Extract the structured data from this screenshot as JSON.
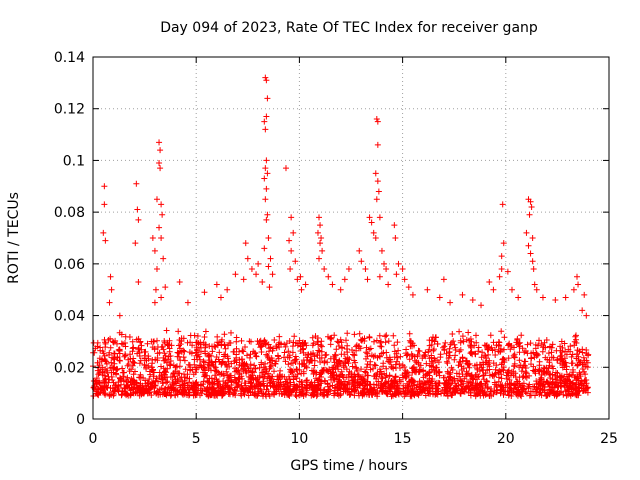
{
  "chart_data": {
    "type": "scatter",
    "title": "Day 094 of 2023, Rate Of TEC Index for receiver ganp",
    "xlabel": "GPS time / hours",
    "ylabel": "ROTI / TECUs",
    "xlim": [
      0,
      25
    ],
    "ylim": [
      0,
      0.14
    ],
    "xticks": [
      0,
      5,
      10,
      15,
      20,
      25
    ],
    "xtick_labels": [
      "0",
      "5",
      "10",
      "15",
      "20",
      "25"
    ],
    "yticks": [
      0,
      0.02,
      0.04,
      0.06,
      0.08,
      0.1,
      0.12,
      0.14
    ],
    "ytick_labels": [
      "0",
      "0.02",
      "0.04",
      "0.06",
      "0.08",
      "0.1",
      "0.12",
      "0.14"
    ],
    "grid": true,
    "marker": "+",
    "color": "#ff0000",
    "x_range_data": [
      0,
      24
    ],
    "baseline_band": [
      0.005,
      0.03
    ],
    "series": [
      {
        "name": "ROTI",
        "points": [
          [
            0.55,
            0.09
          ],
          [
            0.55,
            0.083
          ],
          [
            0.5,
            0.072
          ],
          [
            0.6,
            0.069
          ],
          [
            0.85,
            0.055
          ],
          [
            0.9,
            0.05
          ],
          [
            0.8,
            0.045
          ],
          [
            1.3,
            0.04
          ],
          [
            2.1,
            0.091
          ],
          [
            2.15,
            0.081
          ],
          [
            2.2,
            0.077
          ],
          [
            2.05,
            0.068
          ],
          [
            2.2,
            0.053
          ],
          [
            2.9,
            0.07
          ],
          [
            3.0,
            0.065
          ],
          [
            3.05,
            0.05
          ],
          [
            3.0,
            0.045
          ],
          [
            3.2,
            0.107
          ],
          [
            3.25,
            0.104
          ],
          [
            3.2,
            0.099
          ],
          [
            3.25,
            0.097
          ],
          [
            3.1,
            0.085
          ],
          [
            3.3,
            0.083
          ],
          [
            3.35,
            0.079
          ],
          [
            3.2,
            0.074
          ],
          [
            3.3,
            0.07
          ],
          [
            3.4,
            0.062
          ],
          [
            3.1,
            0.058
          ],
          [
            3.5,
            0.051
          ],
          [
            3.3,
            0.047
          ],
          [
            4.2,
            0.053
          ],
          [
            4.6,
            0.045
          ],
          [
            5.4,
            0.049
          ],
          [
            6.0,
            0.052
          ],
          [
            6.5,
            0.05
          ],
          [
            6.2,
            0.047
          ],
          [
            6.9,
            0.056
          ],
          [
            7.4,
            0.068
          ],
          [
            7.5,
            0.062
          ],
          [
            7.7,
            0.058
          ],
          [
            7.3,
            0.054
          ],
          [
            8.0,
            0.06
          ],
          [
            7.9,
            0.056
          ],
          [
            8.35,
            0.132
          ],
          [
            8.4,
            0.131
          ],
          [
            8.45,
            0.124
          ],
          [
            8.4,
            0.117
          ],
          [
            8.3,
            0.115
          ],
          [
            8.35,
            0.112
          ],
          [
            8.4,
            0.1
          ],
          [
            8.35,
            0.097
          ],
          [
            8.45,
            0.095
          ],
          [
            8.3,
            0.093
          ],
          [
            8.4,
            0.089
          ],
          [
            8.35,
            0.085
          ],
          [
            8.45,
            0.079
          ],
          [
            8.4,
            0.077
          ],
          [
            8.5,
            0.07
          ],
          [
            8.3,
            0.066
          ],
          [
            8.6,
            0.062
          ],
          [
            8.5,
            0.059
          ],
          [
            8.7,
            0.056
          ],
          [
            8.2,
            0.053
          ],
          [
            8.55,
            0.051
          ],
          [
            9.35,
            0.097
          ],
          [
            9.6,
            0.078
          ],
          [
            9.7,
            0.072
          ],
          [
            9.5,
            0.069
          ],
          [
            9.6,
            0.065
          ],
          [
            9.8,
            0.061
          ],
          [
            9.55,
            0.058
          ],
          [
            9.9,
            0.054
          ],
          [
            10.05,
            0.055
          ],
          [
            10.3,
            0.052
          ],
          [
            10.1,
            0.05
          ],
          [
            10.95,
            0.078
          ],
          [
            11.0,
            0.075
          ],
          [
            10.9,
            0.072
          ],
          [
            11.05,
            0.07
          ],
          [
            11.0,
            0.068
          ],
          [
            11.1,
            0.065
          ],
          [
            10.95,
            0.062
          ],
          [
            11.2,
            0.058
          ],
          [
            11.4,
            0.055
          ],
          [
            11.6,
            0.052
          ],
          [
            12.0,
            0.05
          ],
          [
            12.4,
            0.058
          ],
          [
            12.2,
            0.054
          ],
          [
            12.9,
            0.065
          ],
          [
            13.0,
            0.061
          ],
          [
            13.2,
            0.058
          ],
          [
            13.3,
            0.054
          ],
          [
            13.4,
            0.078
          ],
          [
            13.5,
            0.076
          ],
          [
            13.6,
            0.072
          ],
          [
            13.7,
            0.07
          ],
          [
            13.75,
            0.116
          ],
          [
            13.8,
            0.115
          ],
          [
            13.8,
            0.106
          ],
          [
            13.7,
            0.095
          ],
          [
            13.8,
            0.092
          ],
          [
            13.85,
            0.088
          ],
          [
            13.75,
            0.085
          ],
          [
            13.9,
            0.078
          ],
          [
            14.0,
            0.065
          ],
          [
            14.1,
            0.06
          ],
          [
            14.2,
            0.058
          ],
          [
            13.9,
            0.055
          ],
          [
            14.3,
            0.052
          ],
          [
            14.6,
            0.075
          ],
          [
            14.65,
            0.07
          ],
          [
            14.8,
            0.06
          ],
          [
            14.7,
            0.056
          ],
          [
            15.0,
            0.058
          ],
          [
            15.1,
            0.054
          ],
          [
            15.3,
            0.051
          ],
          [
            15.5,
            0.048
          ],
          [
            16.2,
            0.05
          ],
          [
            16.8,
            0.047
          ],
          [
            17.0,
            0.054
          ],
          [
            17.3,
            0.045
          ],
          [
            17.9,
            0.048
          ],
          [
            18.4,
            0.046
          ],
          [
            18.8,
            0.044
          ],
          [
            19.2,
            0.053
          ],
          [
            19.4,
            0.05
          ],
          [
            19.7,
            0.055
          ],
          [
            19.8,
            0.058
          ],
          [
            19.85,
            0.083
          ],
          [
            19.9,
            0.068
          ],
          [
            19.8,
            0.063
          ],
          [
            20.1,
            0.057
          ],
          [
            20.3,
            0.05
          ],
          [
            20.6,
            0.047
          ],
          [
            21.1,
            0.085
          ],
          [
            21.2,
            0.084
          ],
          [
            21.25,
            0.082
          ],
          [
            21.15,
            0.079
          ],
          [
            21.0,
            0.072
          ],
          [
            21.3,
            0.07
          ],
          [
            21.1,
            0.067
          ],
          [
            21.2,
            0.064
          ],
          [
            21.3,
            0.061
          ],
          [
            21.35,
            0.058
          ],
          [
            21.4,
            0.052
          ],
          [
            21.5,
            0.05
          ],
          [
            21.8,
            0.047
          ],
          [
            22.4,
            0.046
          ],
          [
            22.9,
            0.047
          ],
          [
            23.3,
            0.05
          ],
          [
            23.45,
            0.055
          ],
          [
            23.5,
            0.052
          ],
          [
            23.8,
            0.048
          ],
          [
            23.9,
            0.04
          ],
          [
            23.7,
            0.042
          ]
        ]
      }
    ]
  }
}
